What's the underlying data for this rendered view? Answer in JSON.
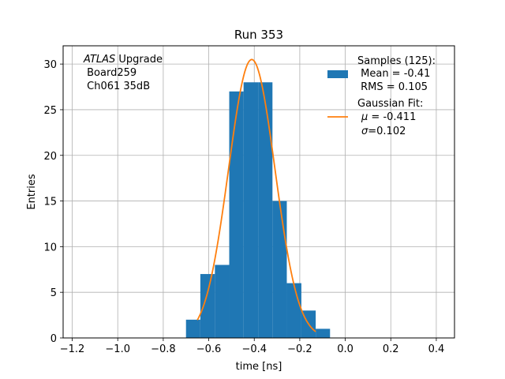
{
  "chart_data": {
    "type": "bar",
    "title": "Run 353",
    "xlabel": "time [ns]",
    "ylabel": "Entries",
    "xlim": [
      -1.24,
      0.48
    ],
    "ylim": [
      0,
      32
    ],
    "grid": true,
    "x_ticks": [
      -1.2,
      -1.0,
      -0.8,
      -0.6,
      -0.4,
      -0.2,
      0.0,
      0.2,
      0.4
    ],
    "x_tick_labels": [
      "−1.2",
      "−1.0",
      "−0.8",
      "−0.6",
      "−0.4",
      "−0.2",
      "0.0",
      "0.2",
      "0.4"
    ],
    "y_ticks": [
      0,
      5,
      10,
      15,
      20,
      25,
      30
    ],
    "y_tick_labels": [
      "0",
      "5",
      "10",
      "15",
      "20",
      "25",
      "30"
    ],
    "histogram": {
      "color": "#1f77b4",
      "bin_edges": [
        -0.7,
        -0.637,
        -0.573,
        -0.51,
        -0.447,
        -0.383,
        -0.32,
        -0.257,
        -0.193,
        -0.13,
        -0.067
      ],
      "counts": [
        2,
        7,
        8,
        27,
        28,
        28,
        15,
        6,
        3,
        1
      ]
    },
    "fit": {
      "color": "#ff7f0e",
      "mu": -0.411,
      "sigma": 0.102,
      "amplitude": 30.5,
      "x_range": [
        -0.65,
        -0.13
      ]
    },
    "annotation": {
      "line1_italic": "ATLAS",
      "line1_rest": " Upgrade",
      "line2": " Board259",
      "line3": " Ch061 35dB"
    },
    "legend": {
      "placement": "top-right",
      "samples_line1": "Samples (125):",
      "samples_line2": " Mean = -0.41",
      "samples_line3": " RMS = 0.105",
      "fit_line1": "Gaussian Fit:",
      "fit_line2_sym": "μ",
      "fit_line2_rest": " = -0.411",
      "fit_line3_sym": "σ",
      "fit_line3_rest": "=0.102"
    }
  }
}
